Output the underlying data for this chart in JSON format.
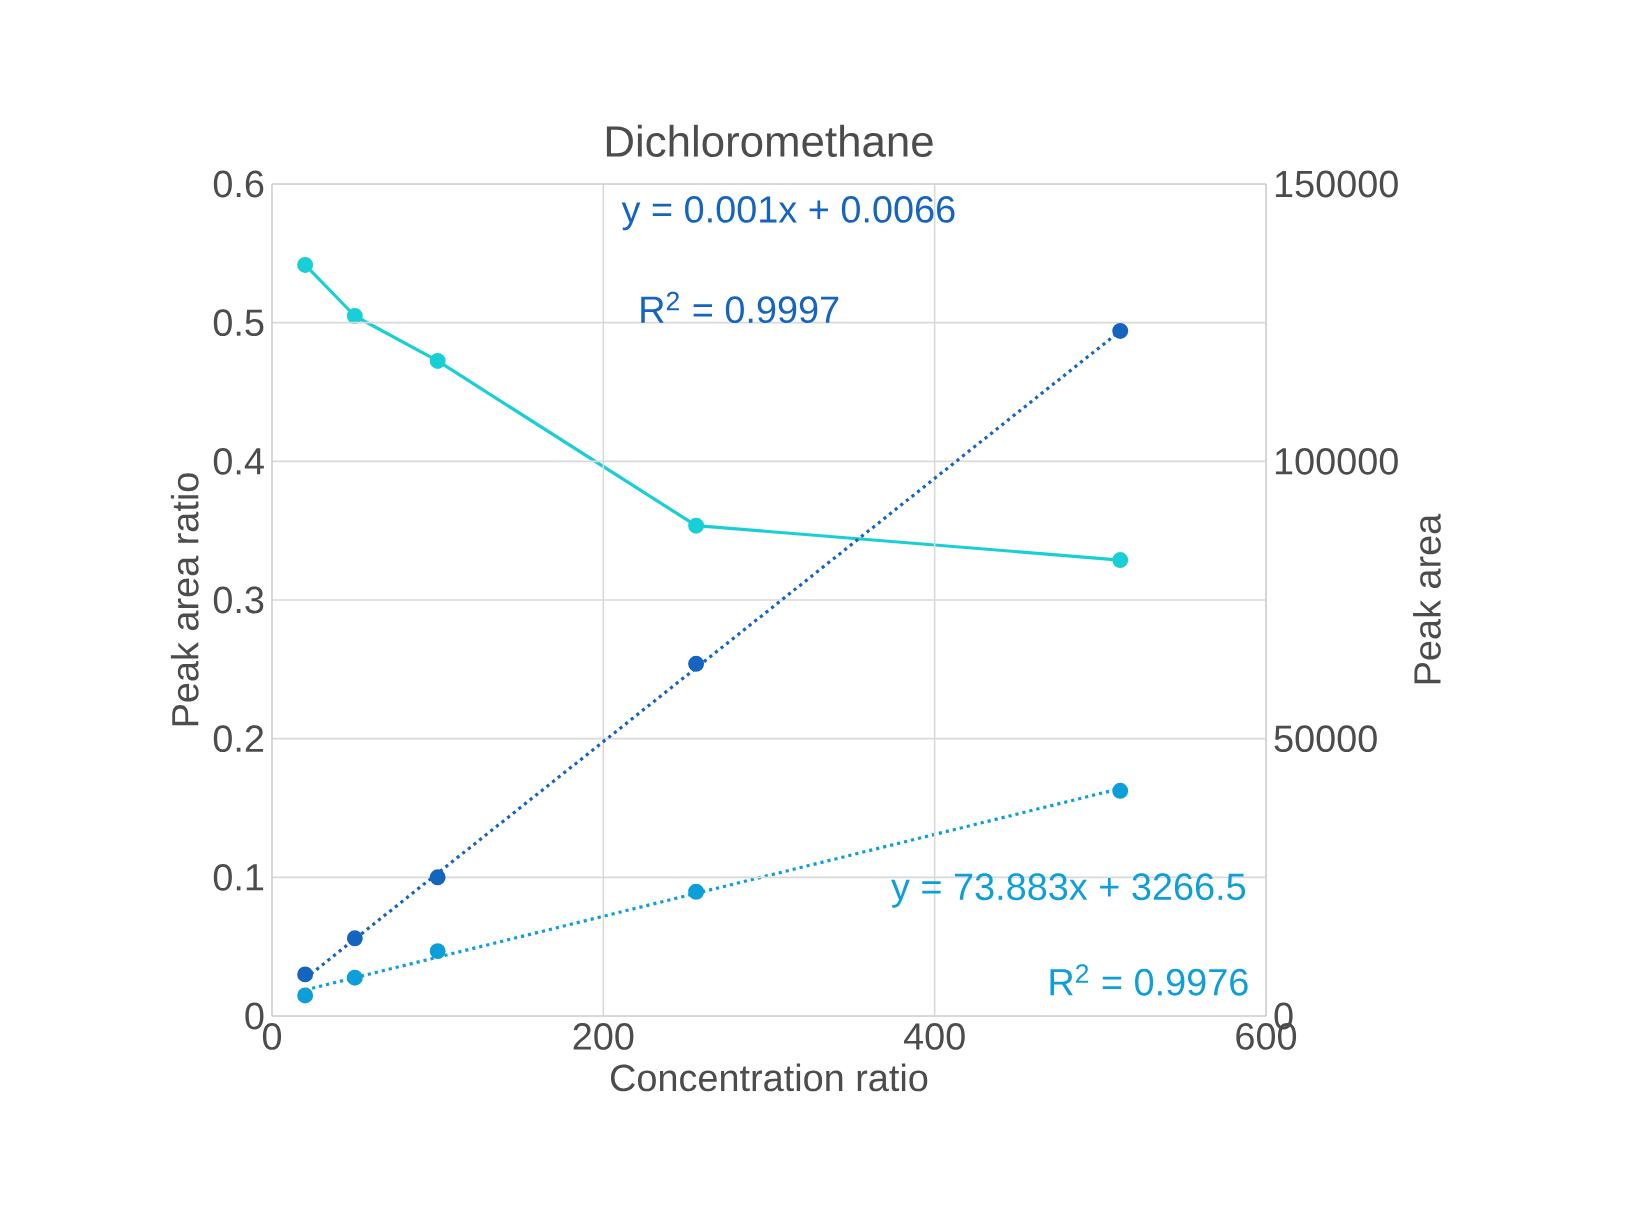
{
  "chart_data": {
    "type": "scatter",
    "title": "Dichloromethane",
    "xlabel": "Concentration ratio",
    "ylabel": "Peak area ratio",
    "y2label": "Peak area",
    "xlim": [
      0,
      600
    ],
    "xticks": [
      0,
      200,
      400,
      600
    ],
    "ylim": [
      0,
      0.6
    ],
    "yticks": [
      0,
      0.1,
      0.2,
      0.3,
      0.4,
      0.5,
      0.6
    ],
    "y2lim": [
      0,
      150000
    ],
    "y2ticks": [
      0,
      50000,
      100000,
      150000
    ],
    "grid": true,
    "marker": "circle",
    "series": [
      {
        "color": "#1565c0",
        "x": [
          20,
          50,
          100,
          256,
          512
        ],
        "values": [
          0.03,
          0.056,
          0.1,
          0.254,
          0.494
        ]
      },
      {
        "axis": "y2",
        "color": "#0e9fd8",
        "x": [
          20,
          50,
          100,
          256,
          512
        ],
        "values": [
          3700,
          6900,
          11700,
          22400,
          40600
        ]
      },
      {
        "type": "line",
        "axis": "y2",
        "color": "#19cfd6",
        "line_style": "solid",
        "x": [
          20,
          50,
          100,
          256,
          512
        ],
        "values": [
          135400,
          126200,
          118100,
          88400,
          82200
        ]
      },
      {
        "type": "line",
        "color": "#1565c0",
        "line_style": "dotted",
        "marker": "none",
        "x": [
          20,
          512
        ],
        "values": [
          0.027,
          0.494
        ]
      },
      {
        "type": "line",
        "axis": "y2",
        "color": "#0e9fd8",
        "line_style": "dotted",
        "marker": "none",
        "x": [
          20,
          512
        ],
        "values": [
          4700,
          41000
        ]
      }
    ],
    "annotations": [
      "y = 0.001x + 0.0066",
      "R$^{2}$ = 0.9997",
      "y = 73.883x + 3266.5",
      "R$^{2}$ = 0.9976"
    ]
  }
}
